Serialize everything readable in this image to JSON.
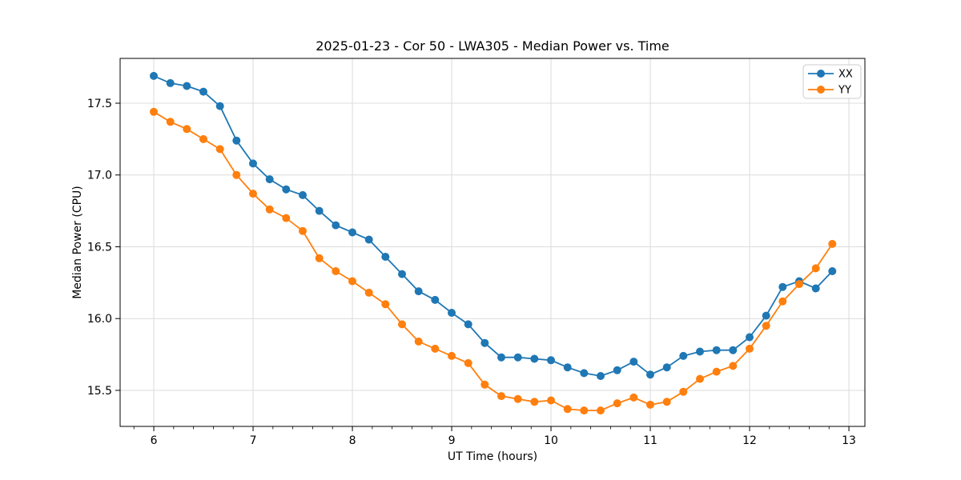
{
  "figure": {
    "background": "#ffffff",
    "title": "2025-01-23 - Cor 50 - LWA305 - Median Power vs. Time",
    "xlabel": "UT Time (hours)",
    "ylabel": "Median Power (CPU)"
  },
  "chart_data": {
    "type": "line",
    "title": "2025-01-23 - Cor 50 - LWA305 - Median Power vs. Time",
    "xlabel": "UT Time (hours)",
    "ylabel": "Median Power (CPU)",
    "xlim": [
      5.661,
      13.161
    ],
    "ylim": [
      15.249,
      17.812
    ],
    "xticks": [
      6,
      7,
      8,
      9,
      10,
      11,
      12,
      13
    ],
    "yticks": [
      15.5,
      16.0,
      16.5,
      17.0,
      17.5
    ],
    "x_minor_step": 0.2,
    "grid": true,
    "grid_color": "#dcdcdc",
    "spine_color": "#000000",
    "legend_position": "upper right",
    "markers": true,
    "x": [
      6.0,
      6.167,
      6.333,
      6.5,
      6.667,
      6.833,
      7.0,
      7.167,
      7.333,
      7.5,
      7.667,
      7.833,
      8.0,
      8.167,
      8.333,
      8.5,
      8.667,
      8.833,
      9.0,
      9.167,
      9.333,
      9.5,
      9.667,
      9.833,
      10.0,
      10.167,
      10.333,
      10.5,
      10.667,
      10.833,
      11.0,
      11.167,
      11.333,
      11.5,
      11.667,
      11.833,
      12.0,
      12.167,
      12.333,
      12.5,
      12.667,
      12.833
    ],
    "series": [
      {
        "name": "XX",
        "color": "#1f77b4",
        "values": [
          17.69,
          17.64,
          17.62,
          17.58,
          17.48,
          17.24,
          17.08,
          16.97,
          16.9,
          16.86,
          16.75,
          16.65,
          16.6,
          16.55,
          16.43,
          16.31,
          16.19,
          16.13,
          16.04,
          15.96,
          15.83,
          15.73,
          15.73,
          15.72,
          15.71,
          15.66,
          15.62,
          15.6,
          15.64,
          15.7,
          15.61,
          15.66,
          15.74,
          15.77,
          15.78,
          15.78,
          15.87,
          16.02,
          16.22,
          16.26,
          16.21,
          16.33
        ]
      },
      {
        "name": "YY",
        "color": "#ff7f0e",
        "values": [
          17.44,
          17.37,
          17.32,
          17.25,
          17.18,
          17.0,
          16.87,
          16.76,
          16.7,
          16.61,
          16.42,
          16.33,
          16.26,
          16.18,
          16.1,
          15.96,
          15.84,
          15.79,
          15.74,
          15.69,
          15.54,
          15.46,
          15.44,
          15.42,
          15.43,
          15.37,
          15.36,
          15.36,
          15.41,
          15.45,
          15.4,
          15.42,
          15.49,
          15.58,
          15.63,
          15.67,
          15.79,
          15.95,
          16.12,
          16.24,
          16.35,
          16.52
        ]
      }
    ]
  }
}
